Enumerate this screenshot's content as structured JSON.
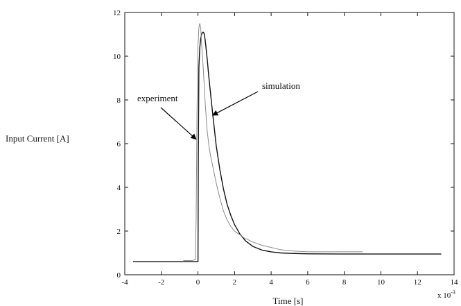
{
  "chart_data": {
    "type": "line",
    "xlabel": "Time [s]",
    "ylabel": "Input Current [A]",
    "x_multiplier_label": "x 10",
    "x_multiplier_exponent": "-3",
    "xlim": [
      -4,
      14
    ],
    "ylim": [
      0,
      12
    ],
    "xticks": [
      -4,
      -2,
      0,
      2,
      4,
      6,
      8,
      10,
      12,
      14
    ],
    "yticks": [
      0,
      2,
      4,
      6,
      8,
      10,
      12
    ],
    "grid": false,
    "series": [
      {
        "name": "simulation",
        "color": "#111111",
        "x": [
          -3.55,
          -1.0,
          0.0,
          0.02,
          0.05,
          0.1,
          0.15,
          0.2,
          0.25,
          0.3,
          0.35,
          0.4,
          0.5,
          0.6,
          0.8,
          1.0,
          1.2,
          1.4,
          1.6,
          1.8,
          2.0,
          2.3,
          2.6,
          3.0,
          3.5,
          4.0,
          4.5,
          5.0,
          6.0,
          8.0,
          10.0,
          13.3
        ],
        "y": [
          0.6,
          0.6,
          0.6,
          5.5,
          9.5,
          10.4,
          10.8,
          11.0,
          11.1,
          11.1,
          11.0,
          10.7,
          9.9,
          9.0,
          7.4,
          5.9,
          4.8,
          3.9,
          3.2,
          2.7,
          2.3,
          1.85,
          1.55,
          1.3,
          1.13,
          1.05,
          1.0,
          0.98,
          0.96,
          0.95,
          0.95,
          0.95
        ]
      },
      {
        "name": "experiment",
        "color": "#8a8a8a",
        "x": [
          -0.8,
          -0.3,
          -0.15,
          -0.1,
          -0.05,
          0.0,
          0.05,
          0.1,
          0.15,
          0.2,
          0.3,
          0.4,
          0.5,
          0.6,
          0.7,
          0.8,
          0.9,
          1.0,
          1.2,
          1.4,
          1.6,
          1.8,
          2.0,
          2.5,
          3.0,
          3.5,
          4.0,
          4.5,
          5.0,
          6.0,
          7.0,
          8.0,
          9.0
        ],
        "y": [
          0.65,
          0.65,
          0.7,
          2.5,
          7.5,
          10.5,
          11.3,
          11.5,
          11.3,
          10.6,
          9.3,
          7.8,
          6.6,
          5.9,
          5.4,
          5.0,
          4.6,
          4.2,
          3.5,
          2.9,
          2.5,
          2.2,
          2.0,
          1.7,
          1.5,
          1.35,
          1.25,
          1.15,
          1.1,
          1.05,
          1.05,
          1.05,
          1.05
        ]
      }
    ],
    "annotations": [
      {
        "text": "experiment",
        "point_to": [
          -0.1,
          6.2
        ]
      },
      {
        "text": "simulation",
        "point_to": [
          0.8,
          7.3
        ]
      }
    ]
  }
}
